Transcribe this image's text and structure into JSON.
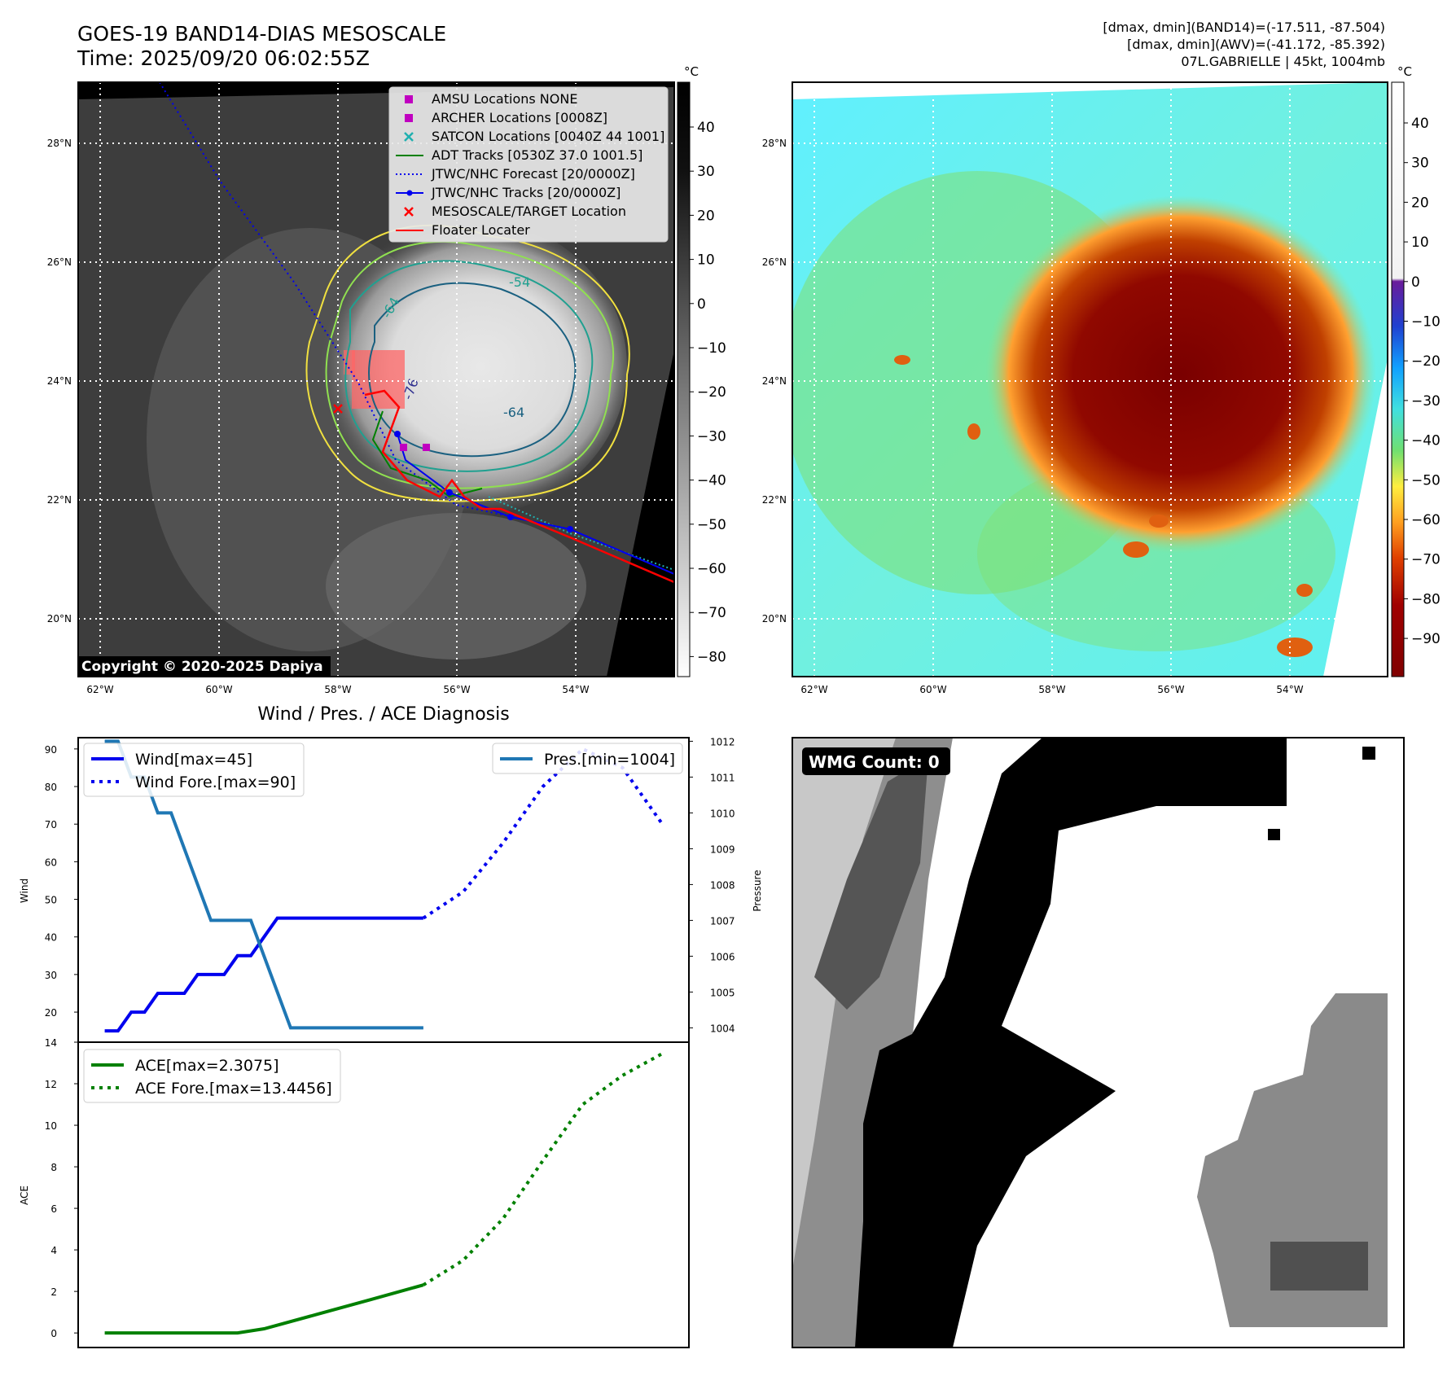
{
  "header": {
    "title": "GOES-19 BAND14-DIAS MESOSCALE",
    "time": "Time: 2025/09/20 06:02:55Z",
    "dmax_band14": "[dmax, dmin](BAND14)=(-17.511, -87.504)",
    "dmax_awv": "[dmax, dmin](AWV)=(-41.172, -85.392)",
    "storm": "07L.GABRIELLE | 45kt, 1004mb"
  },
  "copyright": "Copyright © 2020-2025 Dapiya",
  "colors": {
    "wind": "#0000ee",
    "pressure": "#1f77b4",
    "ace": "#008000",
    "adt": "#008000",
    "forecast": "#0000ee",
    "floater": "#ff0000",
    "archer": "#c000c0",
    "satcon": "#20b0b0"
  },
  "map": {
    "lat_labels": [
      "28°N",
      "26°N",
      "24°N",
      "22°N",
      "20°N"
    ],
    "lat_values": [
      28,
      26,
      24,
      22,
      20
    ],
    "lon_labels": [
      "62°W",
      "60°W",
      "58°W",
      "56°W",
      "54°W"
    ],
    "lon_values": [
      -62,
      -60,
      -58,
      -56,
      -54
    ],
    "extent": {
      "lon_min": -62.4,
      "lon_max": -52.4,
      "lat_min": 19.0,
      "lat_max": 29.0
    },
    "contour_labels": [
      "-54",
      "-64",
      "-64",
      "-76"
    ],
    "legend": [
      {
        "label": "AMSU Locations NONE",
        "marker": "square",
        "color": "#c000c0"
      },
      {
        "label": "ARCHER Locations [0008Z]",
        "marker": "square",
        "color": "#c000c0"
      },
      {
        "label": "SATCON Locations [0040Z 44 1001]",
        "marker": "x",
        "color": "#20b0b0"
      },
      {
        "label": "ADT Tracks [0530Z 37.0 1001.5]",
        "marker": "line",
        "color": "#008000"
      },
      {
        "label": "JTWC/NHC Forecast [20/0000Z]",
        "marker": "dotted",
        "color": "#0000ee"
      },
      {
        "label": "JTWC/NHC Tracks [20/0000Z]",
        "marker": "line-dot",
        "color": "#0000ee"
      },
      {
        "label": "MESOSCALE/TARGET Location",
        "marker": "x",
        "color": "#ff0000"
      },
      {
        "label": "Floater Locater",
        "marker": "line",
        "color": "#ff0000"
      }
    ],
    "unit": "°C",
    "gray_cbar_ticks": [
      "40",
      "30",
      "20",
      "10",
      "0",
      "−10",
      "−20",
      "−30",
      "−40",
      "−50",
      "−60",
      "−70",
      "−80"
    ],
    "color_cbar_ticks": [
      "40",
      "30",
      "20",
      "10",
      "0",
      "−10",
      "−20",
      "−30",
      "−40",
      "−50",
      "−60",
      "−70",
      "−80",
      "−90"
    ]
  },
  "chart_data": [
    {
      "type": "line",
      "title": "Wind / Pres. / ACE Diagnosis",
      "ylabel": "Wind",
      "ylabel_right": "Pressure",
      "ylim": [
        12,
        93
      ],
      "ylim_right": [
        1003.6,
        1012.1
      ],
      "xlim": [
        -1,
        45
      ],
      "yticks": [
        "90",
        "80",
        "70",
        "60",
        "50",
        "40",
        "30",
        "20"
      ],
      "yticks_right": [
        "1012",
        "1011",
        "1010",
        "1009",
        "1008",
        "1007",
        "1006",
        "1005",
        "1004"
      ],
      "series": [
        {
          "name": "Wind[max=45]",
          "axis": "left",
          "style": "solid",
          "x": [
            1,
            2,
            3,
            4,
            5,
            6,
            7,
            8,
            9,
            10,
            11,
            12,
            13,
            14,
            15,
            16,
            17,
            18,
            19,
            20,
            21,
            22,
            23,
            24,
            25
          ],
          "values": [
            15,
            15,
            20,
            20,
            25,
            25,
            25,
            30,
            30,
            30,
            35,
            35,
            40,
            45,
            45,
            45,
            45,
            45,
            45,
            45,
            45,
            45,
            45,
            45,
            45
          ]
        },
        {
          "name": "Wind Fore.[max=90]",
          "axis": "left",
          "style": "dotted",
          "x": [
            25,
            28,
            31,
            34,
            37,
            40,
            43
          ],
          "values": [
            45,
            52,
            65,
            80,
            90,
            85,
            70
          ]
        },
        {
          "name": "Pres.[min=1004]",
          "axis": "right",
          "style": "solid",
          "x": [
            1,
            2,
            3,
            4,
            5,
            6,
            7,
            8,
            9,
            10,
            11,
            12,
            13,
            14,
            15,
            16,
            17,
            18,
            19,
            20,
            21,
            22,
            23,
            24,
            25
          ],
          "values": [
            1012,
            1012,
            1011,
            1011,
            1010,
            1010,
            1009,
            1008,
            1007,
            1007,
            1007,
            1007,
            1006,
            1005,
            1004,
            1004,
            1004,
            1004,
            1004,
            1004,
            1004,
            1004,
            1004,
            1004,
            1004
          ]
        }
      ]
    },
    {
      "type": "line",
      "ylabel": "ACE",
      "ylim": [
        -0.7,
        14
      ],
      "xlim": [
        -1,
        45
      ],
      "yticks": [
        "14",
        "12",
        "10",
        "8",
        "6",
        "4",
        "2",
        "0"
      ],
      "series": [
        {
          "name": "ACE[max=2.3075]",
          "style": "solid",
          "x": [
            1,
            5,
            9,
            11,
            13,
            17,
            21,
            25
          ],
          "values": [
            0,
            0,
            0,
            0,
            0.2,
            0.9,
            1.6,
            2.31
          ]
        },
        {
          "name": "ACE Fore.[max=13.4456]",
          "style": "dotted",
          "x": [
            25,
            28,
            31,
            34,
            37,
            40,
            43
          ],
          "values": [
            2.31,
            3.5,
            5.5,
            8.3,
            11.0,
            12.4,
            13.45
          ]
        }
      ]
    }
  ],
  "wmg": {
    "label": "WMG Count: 0"
  }
}
